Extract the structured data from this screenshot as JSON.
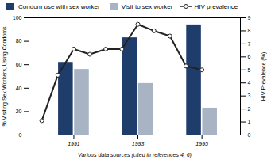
{
  "chart_data": {
    "type": "bar",
    "xlabel": "Various data sources (cited in references 4, 6)",
    "ylabel": "% Visiting Sex Workers, Using Condoms",
    "y2label": "HIV Prevalence (%)",
    "xlim": [
      1989.6,
      1996.2
    ],
    "xticks": [
      1991,
      1993,
      1995
    ],
    "ylim": [
      0,
      100
    ],
    "yticks": [
      0,
      20,
      40,
      60,
      80,
      100
    ],
    "y2lim": [
      0,
      9
    ],
    "y2ticks": [
      0,
      1,
      2,
      3,
      4,
      5,
      6,
      7,
      8,
      9
    ],
    "legend": "upper left",
    "series": [
      {
        "name": "Condom use with sex worker",
        "type": "bar",
        "color": "#1e3d6b",
        "x": [
          1991,
          1993,
          1995
        ],
        "values": [
          62,
          83,
          94
        ]
      },
      {
        "name": "Visit to sex worker",
        "type": "bar",
        "color": "#a8b4c4",
        "x": [
          1991,
          1993,
          1995
        ],
        "values": [
          56,
          44,
          23
        ]
      },
      {
        "name": "HIV prevalence",
        "type": "line",
        "axis": "y2",
        "marker": "circle",
        "color": "#222222",
        "x": [
          1990,
          1990.5,
          1991,
          1991.5,
          1992,
          1992.5,
          1993,
          1993.5,
          1994,
          1994.5,
          1995
        ],
        "values": [
          1.1,
          4.6,
          6.6,
          6.2,
          6.6,
          6.6,
          8.5,
          8.0,
          7.6,
          5.3,
          5.0
        ]
      }
    ]
  }
}
